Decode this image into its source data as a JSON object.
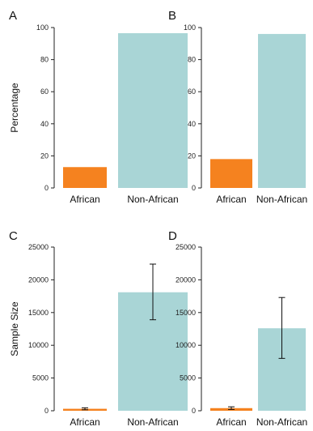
{
  "chart_data": [
    {
      "panel": "A",
      "type": "bar",
      "categories": [
        "African",
        "Non-African"
      ],
      "values": [
        13,
        96.5
      ],
      "ylabel": "Percentage",
      "ylim": [
        0,
        100
      ],
      "yticks": [
        0,
        20,
        40,
        60,
        80,
        100
      ],
      "colors": [
        "#f5821f",
        "#a9d5d6"
      ]
    },
    {
      "panel": "B",
      "type": "bar",
      "categories": [
        "African",
        "Non-African"
      ],
      "values": [
        18,
        96
      ],
      "ylabel": "",
      "ylim": [
        0,
        100
      ],
      "yticks": [
        0,
        20,
        40,
        60,
        80,
        100
      ],
      "colors": [
        "#f5821f",
        "#a9d5d6"
      ]
    },
    {
      "panel": "C",
      "type": "bar",
      "categories": [
        "African",
        "Non-African"
      ],
      "values": [
        300,
        18100
      ],
      "error_low": [
        150,
        13900
      ],
      "error_high": [
        450,
        22400
      ],
      "ylabel": "Sample Size",
      "ylim": [
        0,
        25000
      ],
      "yticks": [
        0,
        5000,
        10000,
        15000,
        20000,
        25000
      ],
      "colors": [
        "#f5821f",
        "#a9d5d6"
      ]
    },
    {
      "panel": "D",
      "type": "bar",
      "categories": [
        "African",
        "Non-African"
      ],
      "values": [
        400,
        12600
      ],
      "error_low": [
        200,
        8000
      ],
      "error_high": [
        600,
        17300
      ],
      "ylabel": "",
      "ylim": [
        0,
        25000
      ],
      "yticks": [
        0,
        5000,
        10000,
        15000,
        20000,
        25000
      ],
      "colors": [
        "#f5821f",
        "#a9d5d6"
      ]
    }
  ]
}
